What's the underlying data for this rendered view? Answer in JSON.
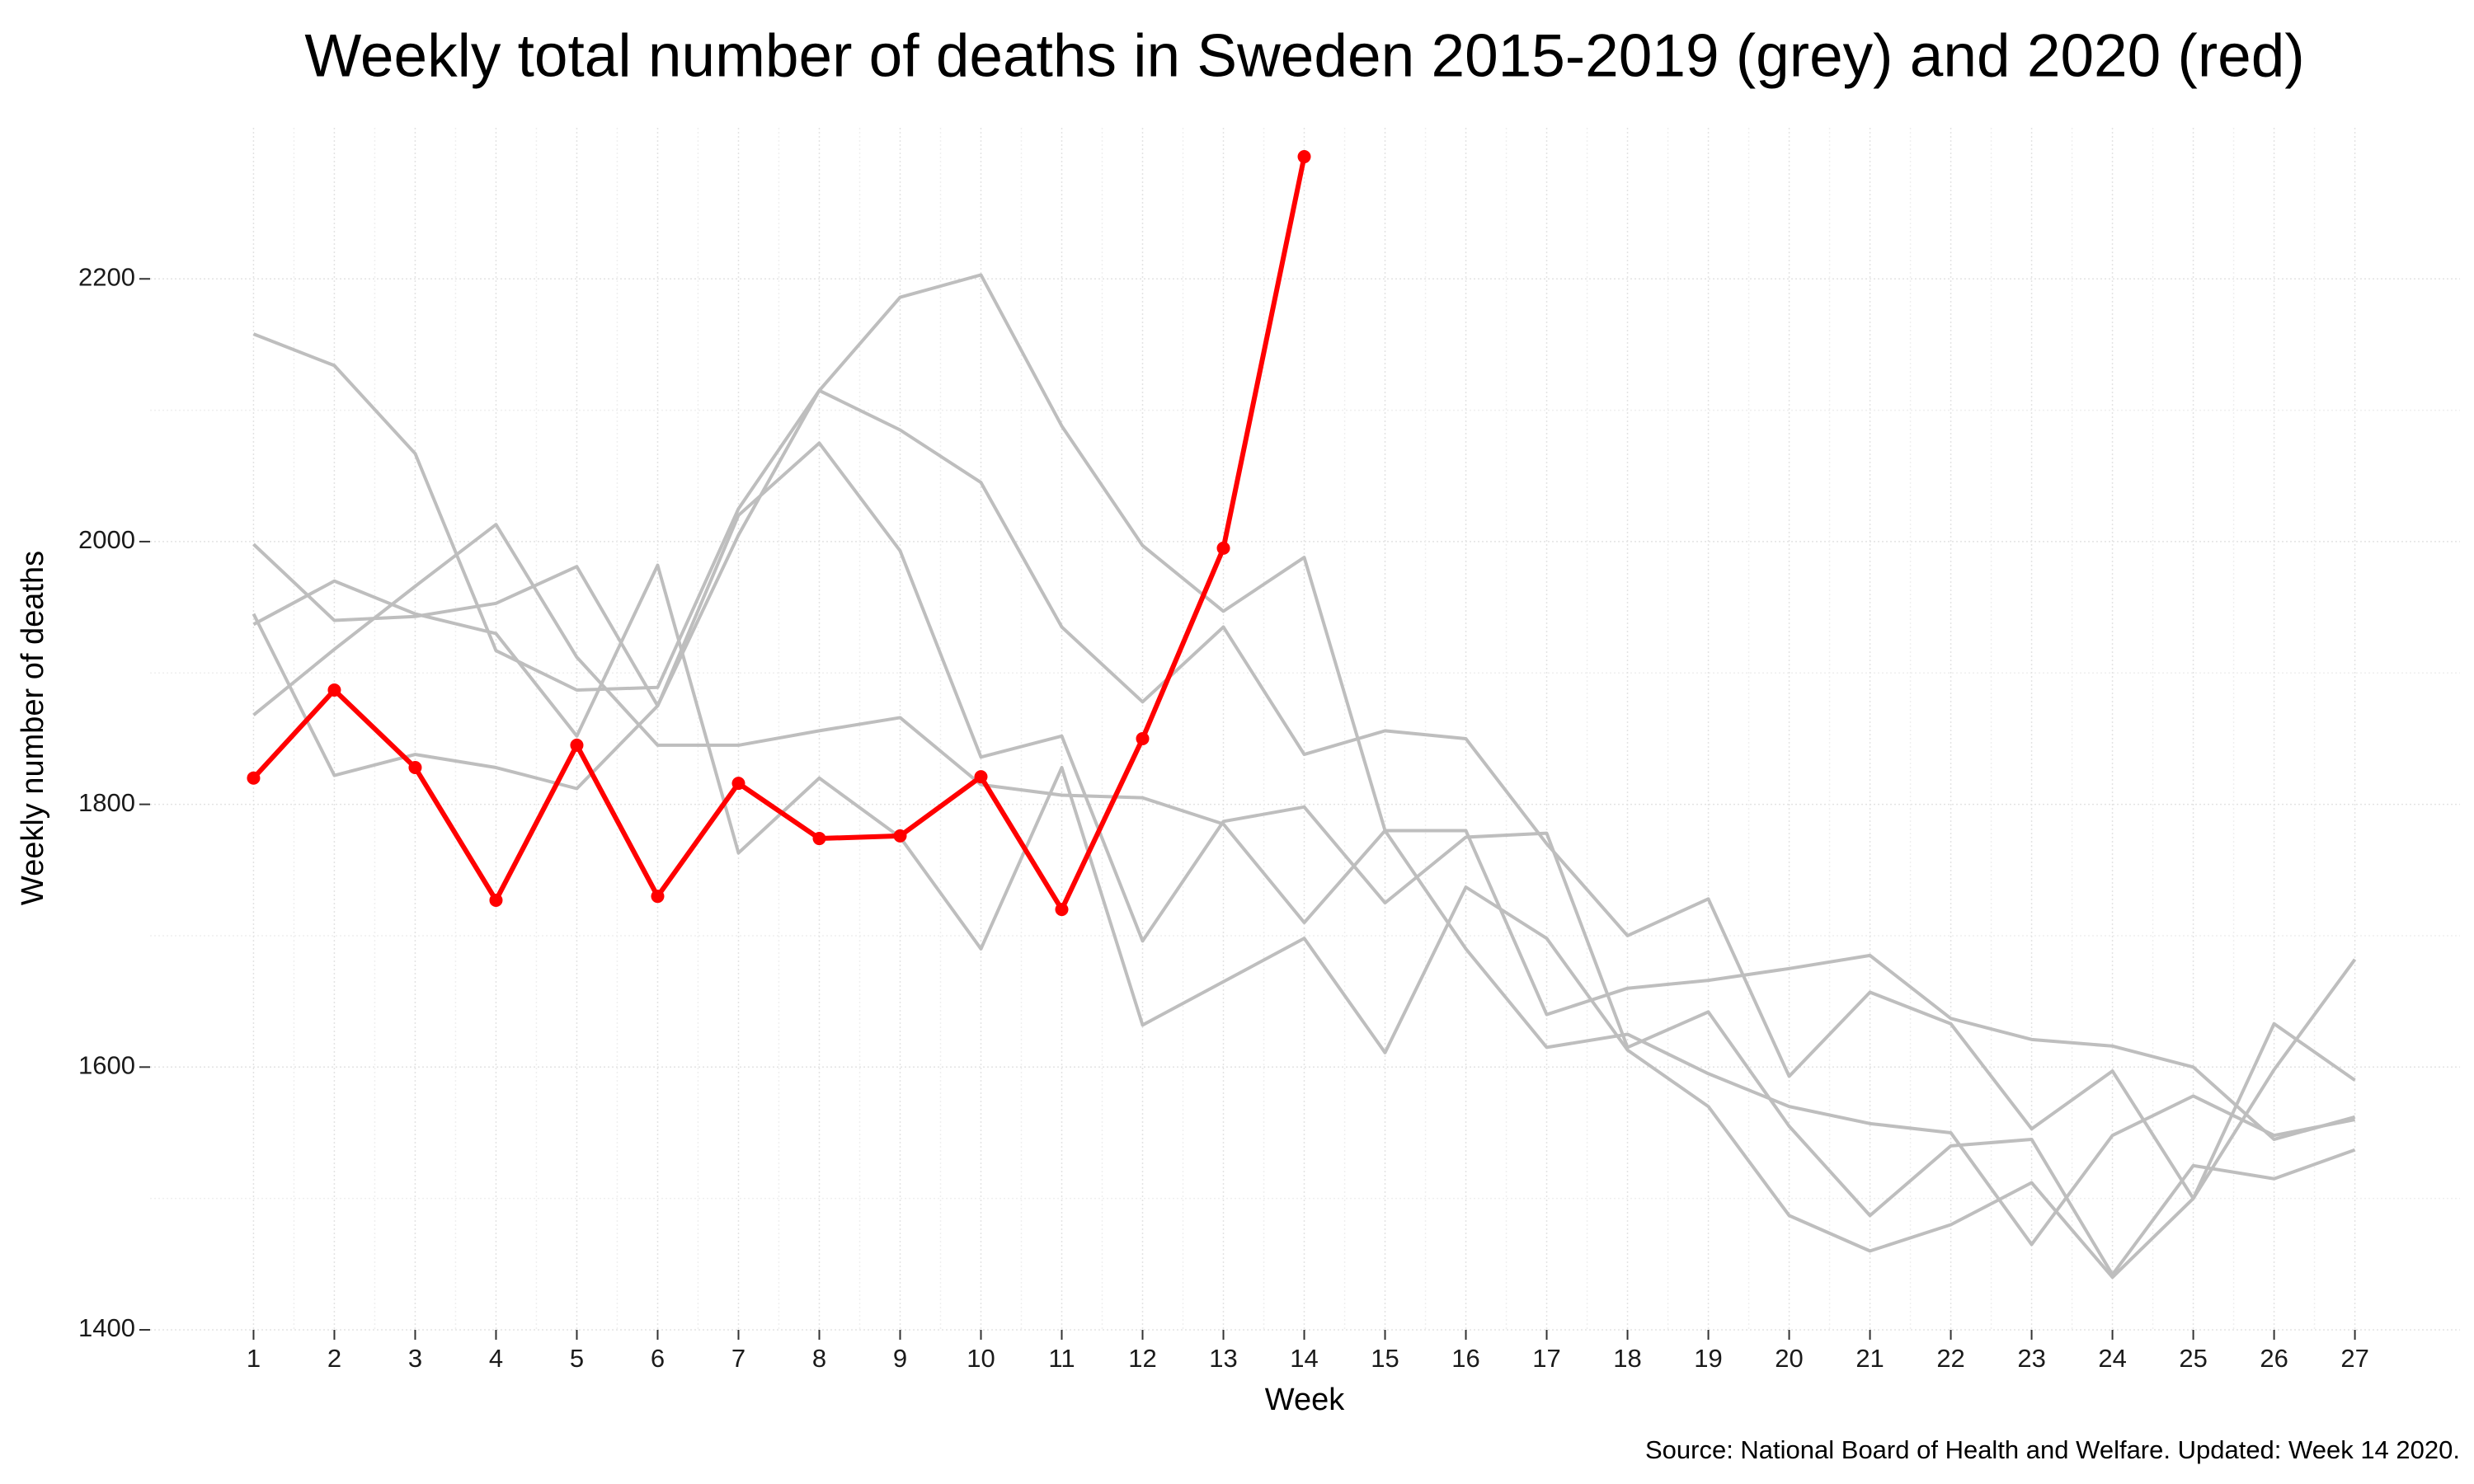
{
  "chart_data": {
    "type": "line",
    "title": "Weekly total number of deaths in Sweden 2015-2019 (grey) and 2020 (red)",
    "x_label": "Week",
    "y_label": "Weekly number of deaths",
    "caption": "Source: National Board of Health and Welfare. Updated: Week 14 2020.",
    "x": [
      1,
      2,
      3,
      4,
      5,
      6,
      7,
      8,
      9,
      10,
      11,
      12,
      13,
      14,
      15,
      16,
      17,
      18,
      19,
      20,
      21,
      22,
      23,
      24,
      25,
      26,
      27
    ],
    "xlim": [
      -0.28,
      28.3
    ],
    "xticks": [
      1,
      2,
      3,
      4,
      5,
      6,
      7,
      8,
      9,
      10,
      11,
      12,
      13,
      14,
      15,
      16,
      17,
      18,
      19,
      20,
      21,
      22,
      23,
      24,
      25,
      26,
      27
    ],
    "ylim": [
      1400,
      2315
    ],
    "yticks": [
      1400,
      1600,
      1800,
      2000,
      2200
    ],
    "grid": true,
    "series": [
      {
        "color": "#bebebe",
        "markers": false,
        "values": [
          2158,
          2134,
          2067,
          1917,
          1887,
          1889,
          2025,
          2115,
          2085,
          2045,
          1935,
          1878,
          1935,
          1838,
          1856,
          1850,
          1770,
          1700,
          1728,
          1593,
          1657,
          1633,
          1553,
          1597,
          1500,
          1633,
          1590
        ]
      },
      {
        "color": "#bebebe",
        "markers": false,
        "values": [
          1998,
          1940,
          1943,
          1953,
          1981,
          1875,
          2005,
          2115,
          2186,
          2203,
          2088,
          1997,
          1947,
          1988,
          1780,
          1780,
          1640,
          1660,
          1666,
          1675,
          1685,
          1637,
          1621,
          1616,
          1600,
          1545,
          1562
        ]
      },
      {
        "color": "#bebebe",
        "markers": false,
        "values": [
          1945,
          1822,
          1838,
          1828,
          1812,
          1875,
          2020,
          2075,
          1993,
          1836,
          1852,
          1696,
          1787,
          1798,
          1725,
          1775,
          1778,
          1615,
          1642,
          1555,
          1487,
          1540,
          1545,
          1442,
          1525,
          1515,
          1537
        ]
      },
      {
        "color": "#bebebe",
        "markers": false,
        "values": [
          1868,
          1918,
          1966,
          2013,
          1912,
          1845,
          1845,
          1856,
          1866,
          1815,
          1807,
          1805,
          1785,
          1710,
          1780,
          1690,
          1615,
          1625,
          1595,
          1570,
          1557,
          1550,
          1465,
          1548,
          1578,
          1548,
          1560
        ]
      },
      {
        "color": "#bebebe",
        "markers": false,
        "values": [
          1937,
          1970,
          1945,
          1930,
          1852,
          1982,
          1763,
          1820,
          1775,
          1690,
          1828,
          1632,
          1665,
          1698,
          1611,
          1737,
          1698,
          1613,
          1570,
          1487,
          1460,
          1480,
          1512,
          1440,
          1500,
          1598,
          1682
        ]
      },
      {
        "color": "#ff0000",
        "markers": true,
        "values": [
          1820,
          1887,
          1828,
          1727,
          1845,
          1730,
          1816,
          1774,
          1776,
          1821,
          1720,
          1850,
          1995,
          2293,
          null,
          null,
          null,
          null,
          null,
          null,
          null,
          null,
          null,
          null,
          null,
          null,
          null
        ]
      }
    ]
  }
}
